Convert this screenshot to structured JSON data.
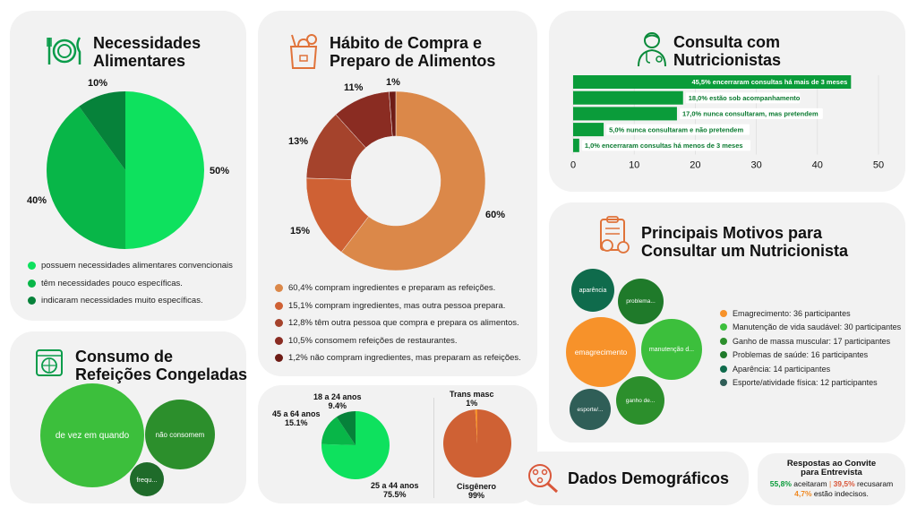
{
  "colors": {
    "green_bright": "#0ee15e",
    "green_mid": "#08b648",
    "green_dark": "#06823a",
    "orange_light": "#db8849",
    "orange_mid": "#cf6134",
    "brown": "#a5432c",
    "brown_dark": "#8a2c22",
    "brown_deep": "#6e1c16",
    "bubble_orange": "#f7922a",
    "bubble_green": "#3cbf3c",
    "bubble_green_dark": "#2c8f2c",
    "bubble_teal_dark": "#0f6b4c",
    "bubble_teal_grey": "#2f5e57"
  },
  "panels": {
    "necessidades": {
      "title_line1": "Necessidades",
      "title_line2": "Alimentares",
      "icon": "plate-fork-knife-icon"
    },
    "habito": {
      "title_line1": "Hábito de Compra e",
      "title_line2": "Preparo de Alimentos",
      "icon": "grocery-bag-icon"
    },
    "consulta": {
      "title_line1": "Consulta com",
      "title_line2": "Nutricionistas",
      "icon": "nutritionist-icon"
    },
    "congeladas": {
      "title_line1": "Consumo de",
      "title_line2": "Refeições Congeladas",
      "icon": "frozen-meal-icon"
    },
    "motivos": {
      "title_line1": "Principais Motivos para",
      "title_line2": "Consultar um Nutricionista",
      "icon": "clipboard-fruit-icon"
    },
    "demograficos": {
      "title": "Dados Demográficos",
      "icon": "demographics-search-icon"
    },
    "convite": {
      "title_line1": "Respostas ao Convite",
      "title_line2": "para Entrevista",
      "accepted_value": "55,8%",
      "accepted_text": "aceitaram",
      "separator": "|",
      "refused_value": "39,5%",
      "refused_text": "recusaram",
      "undecided_value": "4,7%",
      "undecided_text": "estão indecisos."
    }
  },
  "chart_data": [
    {
      "id": "necessidades",
      "type": "pie",
      "title": "Necessidades Alimentares",
      "slices": [
        {
          "label": "possuem necessidades alimentares convencionais",
          "value": 50,
          "pct_label": "50%",
          "color": "#0ee15e"
        },
        {
          "label": "têm necessidades pouco específicas.",
          "value": 40,
          "pct_label": "40%",
          "color": "#08b648"
        },
        {
          "label": "indicaram necessidades muito específicas.",
          "value": 10,
          "pct_label": "10%",
          "color": "#06823a"
        }
      ]
    },
    {
      "id": "habito",
      "type": "pie",
      "title": "Hábito de Compra e Preparo de Alimentos",
      "slices": [
        {
          "label": "60,4% compram ingredientes e preparam as refeições.",
          "value": 60.4,
          "pct_label": "60%",
          "color": "#db8849"
        },
        {
          "label": "15,1% compram ingredientes, mas outra pessoa prepara.",
          "value": 15.1,
          "pct_label": "15%",
          "color": "#cf6134"
        },
        {
          "label": "12,8% têm outra pessoa que compra e prepara os alimentos.",
          "value": 12.8,
          "pct_label": "13%",
          "color": "#a5432c"
        },
        {
          "label": "10,5% consomem refeições de restaurantes.",
          "value": 10.5,
          "pct_label": "11%",
          "color": "#8a2c22"
        },
        {
          "label": "1,2% não compram ingredientes, mas preparam as refeições.",
          "value": 1.2,
          "pct_label": "1%",
          "color": "#6e1c16"
        }
      ]
    },
    {
      "id": "consulta",
      "type": "bar",
      "title": "Consulta com Nutricionistas",
      "orientation": "horizontal",
      "xlim": [
        0,
        50
      ],
      "ticks": [
        "0",
        "10",
        "20",
        "30",
        "40",
        "50"
      ],
      "bars": [
        {
          "label": "45,5% encerraram consultas há mais de 3 meses",
          "value": 45.5
        },
        {
          "label": "18,0% estão sob acompanhamento",
          "value": 18.0
        },
        {
          "label": "17,0% nunca consultaram, mas pretendem",
          "value": 17.0
        },
        {
          "label": "5,0% nunca consultaram e não pretendem",
          "value": 5.0
        },
        {
          "label": "1,0% encerraram consultas há menos de 3 meses",
          "value": 1.0
        }
      ]
    },
    {
      "id": "motivos",
      "type": "bubble",
      "title": "Principais Motivos para Consultar um Nutricionista",
      "items": [
        {
          "legend": "Emagrecimento: 36 participantes",
          "label": "emagrecimento",
          "value": 36,
          "color": "#f7922a"
        },
        {
          "legend": "Manutenção de vida saudável: 30 participantes",
          "label": "manutenção d...",
          "value": 30,
          "color": "#3cbf3c"
        },
        {
          "legend": "Ganho de massa muscular: 17 participantes",
          "label": "ganho de...",
          "value": 17,
          "color": "#2c8f2c"
        },
        {
          "legend": "Problemas de saúde: 16 participantes",
          "label": "problema...",
          "value": 16,
          "color": "#1f7a2a"
        },
        {
          "legend": "Aparência: 14 participantes",
          "label": "aparência",
          "value": 14,
          "color": "#0f6b4c"
        },
        {
          "legend": "Esporte/atividade física: 12 participantes",
          "label": "esporte/...",
          "value": 12,
          "color": "#2f5e57"
        }
      ]
    },
    {
      "id": "congeladas",
      "type": "bubble",
      "title": "Consumo de Refeições Congeladas",
      "items": [
        {
          "label": "de vez em quando",
          "color": "#3cbf3c"
        },
        {
          "label": "não consomem",
          "color": "#2c8f2c"
        },
        {
          "label": "frequ...",
          "color": "#1f6b2a"
        }
      ]
    },
    {
      "id": "idade",
      "type": "pie",
      "slices": [
        {
          "label_line1": "25 a 44 anos",
          "label_line2": "75.5%",
          "value": 75.5,
          "color": "#0ee15e"
        },
        {
          "label_line1": "45 a 64 anos",
          "label_line2": "15.1%",
          "value": 15.1,
          "color": "#08b648"
        },
        {
          "label_line1": "18 a 24 anos",
          "label_line2": "9.4%",
          "value": 9.4,
          "color": "#06823a"
        }
      ]
    },
    {
      "id": "genero",
      "type": "pie",
      "slices": [
        {
          "label_line1": "Cisgênero",
          "label_line2": "99%",
          "value": 99,
          "color": "#cf6134"
        },
        {
          "label_line1": "Trans masc",
          "label_line2": "1%",
          "value": 1,
          "color": "#f7922a"
        }
      ]
    }
  ]
}
